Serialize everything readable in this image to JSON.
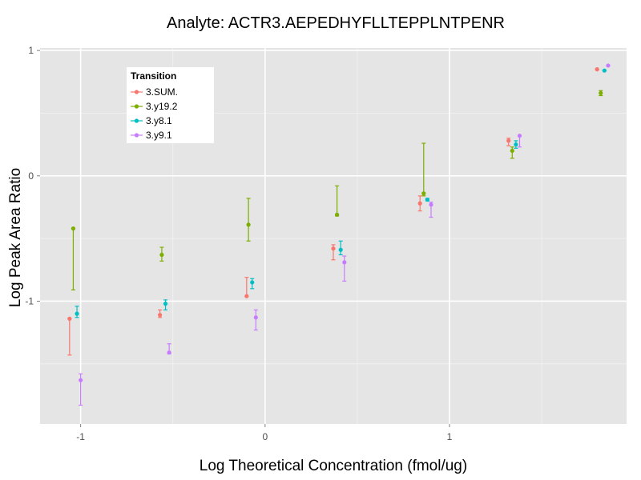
{
  "chart_data": {
    "type": "scatter",
    "title": "Analyte: ACTR3.AEPEDHYFLLTEPPLNTPENR",
    "xlabel": "Log Theoretical Concentration (fmol/ug)",
    "ylabel": "Log Peak Area Ratio",
    "xlim": [
      -1.22,
      1.96
    ],
    "ylim": [
      -1.98,
      1.02
    ],
    "x_ticks": [
      -1,
      0,
      1
    ],
    "x_tick_labels": [
      "-1",
      "0",
      "1"
    ],
    "y_ticks": [
      -1,
      0,
      1
    ],
    "y_tick_labels": [
      "-1",
      "0",
      "1"
    ],
    "grid": true,
    "legend_title": "Transition",
    "legend_position": "top-left",
    "series": [
      {
        "name": "3.SUM.",
        "color": "#F8766D",
        "points": [
          {
            "x": -1.06,
            "y": -1.14,
            "ymin": -1.43,
            "ymax": -1.14
          },
          {
            "x": -0.57,
            "y": -1.11,
            "ymin": -1.13,
            "ymax": -1.07
          },
          {
            "x": -0.1,
            "y": -0.96,
            "ymin": -0.96,
            "ymax": -0.81
          },
          {
            "x": 0.37,
            "y": -0.58,
            "ymin": -0.67,
            "ymax": -0.55
          },
          {
            "x": 0.84,
            "y": -0.22,
            "ymin": -0.28,
            "ymax": -0.16
          },
          {
            "x": 1.32,
            "y": 0.28,
            "ymin": 0.24,
            "ymax": 0.3
          },
          {
            "x": 1.8,
            "y": 0.85,
            "ymin": 0.85,
            "ymax": 0.85
          }
        ]
      },
      {
        "name": "3.y19.2",
        "color": "#7CAE00",
        "points": [
          {
            "x": -1.04,
            "y": -0.42,
            "ymin": -0.91,
            "ymax": -0.42
          },
          {
            "x": -0.56,
            "y": -0.63,
            "ymin": -0.68,
            "ymax": -0.57
          },
          {
            "x": -0.09,
            "y": -0.39,
            "ymin": -0.52,
            "ymax": -0.18
          },
          {
            "x": 0.39,
            "y": -0.31,
            "ymin": -0.32,
            "ymax": -0.08
          },
          {
            "x": 0.86,
            "y": -0.14,
            "ymin": -0.16,
            "ymax": 0.26
          },
          {
            "x": 1.34,
            "y": 0.2,
            "ymin": 0.14,
            "ymax": 0.23
          },
          {
            "x": 1.82,
            "y": 0.66,
            "ymin": 0.64,
            "ymax": 0.68
          }
        ]
      },
      {
        "name": "3.y8.1",
        "color": "#00BFC4",
        "points": [
          {
            "x": -1.02,
            "y": -1.1,
            "ymin": -1.13,
            "ymax": -1.04
          },
          {
            "x": -0.54,
            "y": -1.02,
            "ymin": -1.07,
            "ymax": -0.99
          },
          {
            "x": -0.07,
            "y": -0.85,
            "ymin": -0.9,
            "ymax": -0.82
          },
          {
            "x": 0.41,
            "y": -0.59,
            "ymin": -0.63,
            "ymax": -0.52
          },
          {
            "x": 0.88,
            "y": -0.19,
            "ymin": -0.2,
            "ymax": -0.18
          },
          {
            "x": 1.36,
            "y": 0.25,
            "ymin": 0.22,
            "ymax": 0.28
          },
          {
            "x": 1.84,
            "y": 0.84,
            "ymin": 0.84,
            "ymax": 0.84
          }
        ]
      },
      {
        "name": "3.y9.1",
        "color": "#C77CFF",
        "points": [
          {
            "x": -1.0,
            "y": -1.63,
            "ymin": -1.83,
            "ymax": -1.58
          },
          {
            "x": -0.52,
            "y": -1.41,
            "ymin": -1.42,
            "ymax": -1.34
          },
          {
            "x": -0.05,
            "y": -1.13,
            "ymin": -1.23,
            "ymax": -1.07
          },
          {
            "x": 0.43,
            "y": -0.69,
            "ymin": -0.84,
            "ymax": -0.64
          },
          {
            "x": 0.9,
            "y": -0.23,
            "ymin": -0.33,
            "ymax": -0.21
          },
          {
            "x": 1.38,
            "y": 0.32,
            "ymin": 0.23,
            "ymax": 0.32
          },
          {
            "x": 1.86,
            "y": 0.88,
            "ymin": 0.88,
            "ymax": 0.88
          }
        ]
      }
    ]
  }
}
